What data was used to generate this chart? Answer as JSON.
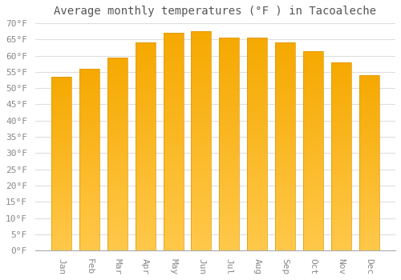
{
  "title": "Average monthly temperatures (°F ) in Tacoaleche",
  "months": [
    "Jan",
    "Feb",
    "Mar",
    "Apr",
    "May",
    "Jun",
    "Jul",
    "Aug",
    "Sep",
    "Oct",
    "Nov",
    "Dec"
  ],
  "values": [
    53.5,
    56,
    59.5,
    64,
    67,
    67.5,
    65.5,
    65.5,
    64,
    61.5,
    58,
    54
  ],
  "bar_color_top": "#FFC84A",
  "bar_color_bottom": "#F5A800",
  "bar_edge_color": "#E09500",
  "ylim": [
    0,
    70
  ],
  "ytick_step": 5,
  "background_color": "#FFFFFF",
  "plot_bg_color": "#FFFFFF",
  "grid_color": "#DDDDDD",
  "title_fontsize": 10,
  "tick_fontsize": 8,
  "title_color": "#555555",
  "tick_color": "#888888"
}
